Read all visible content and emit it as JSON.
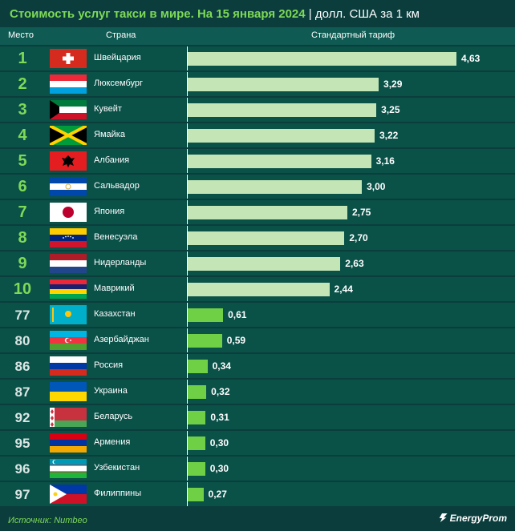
{
  "header": {
    "title": "Стоимость услуг такси в мире. На 15 января 2024",
    "separator": "|",
    "unit": "долл. США за 1 км",
    "col_rank": "Место",
    "col_country": "Страна",
    "col_tariff": "Стандартный тариф"
  },
  "chart_data": {
    "type": "bar",
    "orientation": "horizontal",
    "categories": [
      "Швейцария",
      "Люксембург",
      "Кувейт",
      "Ямайка",
      "Албания",
      "Сальвадор",
      "Япония",
      "Венесуэла",
      "Нидерланды",
      "Маврикий",
      "Казахстан",
      "Азербайджан",
      "Россия",
      "Украина",
      "Беларусь",
      "Армения",
      "Узбекистан",
      "Филиппины"
    ],
    "ranks": [
      "1",
      "2",
      "3",
      "4",
      "5",
      "6",
      "7",
      "8",
      "9",
      "10",
      "77",
      "80",
      "86",
      "87",
      "92",
      "95",
      "96",
      "97"
    ],
    "values": [
      4.63,
      3.29,
      3.25,
      3.22,
      3.16,
      3.0,
      2.75,
      2.7,
      2.63,
      2.44,
      0.61,
      0.59,
      0.34,
      0.32,
      0.31,
      0.3,
      0.3,
      0.27
    ],
    "value_labels": [
      "4,63",
      "3,29",
      "3,25",
      "3,22",
      "3,16",
      "3,00",
      "2,75",
      "2,70",
      "2,63",
      "2,44",
      "0,61",
      "0,59",
      "0,34",
      "0,32",
      "0,31",
      "0,30",
      "0,30",
      "0,27"
    ],
    "flags": [
      "switzerland-flag-icon",
      "luxembourg-flag-icon",
      "kuwait-flag-icon",
      "jamaica-flag-icon",
      "albania-flag-icon",
      "el-salvador-flag-icon",
      "japan-flag-icon",
      "venezuela-flag-icon",
      "netherlands-flag-icon",
      "mauritius-flag-icon",
      "kazakhstan-flag-icon",
      "azerbaijan-flag-icon",
      "russia-flag-icon",
      "ukraine-flag-icon",
      "belarus-flag-icon",
      "armenia-flag-icon",
      "uzbekistan-flag-icon",
      "philippines-flag-icon"
    ],
    "xlim": [
      0,
      4.63
    ],
    "colors": {
      "top10": "#c4e5b6",
      "others": "#6fcf45",
      "accent": "#7ed957"
    }
  },
  "footer": {
    "source": "Источник: Numbeo",
    "brand": "EnergyProm"
  }
}
